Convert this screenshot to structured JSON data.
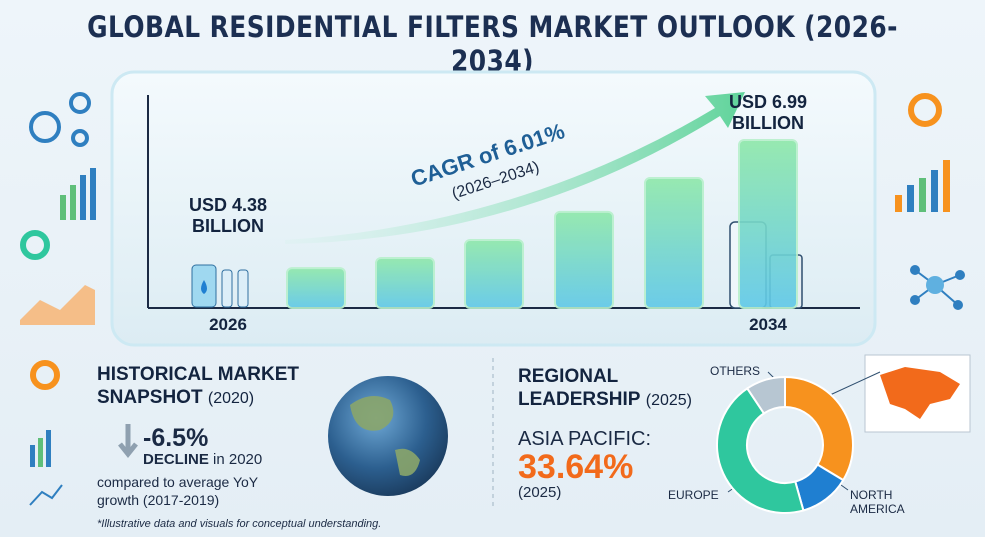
{
  "title": "GLOBAL RESIDENTIAL FILTERS MARKET OUTLOOK (2026-2034)",
  "cagr": {
    "label": "CAGR of 6.01%",
    "period": "(2026–2034)"
  },
  "historical": {
    "title": "HISTORICAL MARKET",
    "title2": "SNAPSHOT",
    "year": "(2020)",
    "value": "-6.5%",
    "decline": "DECLINE",
    "decline_suffix": "in 2020",
    "note": "compared to average YoY growth (2017-2019)"
  },
  "regional": {
    "title": "REGIONAL",
    "title2": "LEADERSHIP",
    "year": "(2025)",
    "value_year": "(2025)"
  },
  "footnote": "*Illustrative data and visuals for conceptual understanding.",
  "chart_data": [
    {
      "type": "bar",
      "categories": [
        "2026",
        null,
        null,
        null,
        null,
        null,
        "2034"
      ],
      "values": [
        4.38,
        1.66,
        2.08,
        2.83,
        4.0,
        5.41,
        6.99
      ],
      "value_labels": [
        "USD 4.38 BILLION",
        null,
        null,
        null,
        null,
        null,
        "USD 6.99 BILLION"
      ],
      "color": "#7fe0a8"
    },
    {
      "type": "pie",
      "categories": [
        "ASIA PACIFIC:",
        "NORTH AMERICA",
        "EUROPE",
        "OTHERS"
      ],
      "values": [
        33.64,
        12,
        45,
        9.36
      ],
      "value_labels": [
        "33.64%",
        null,
        null,
        null
      ],
      "colors": [
        "#f7921e",
        "#1f7fd1",
        "#2fc79e",
        "#b7c6d2"
      ]
    }
  ]
}
